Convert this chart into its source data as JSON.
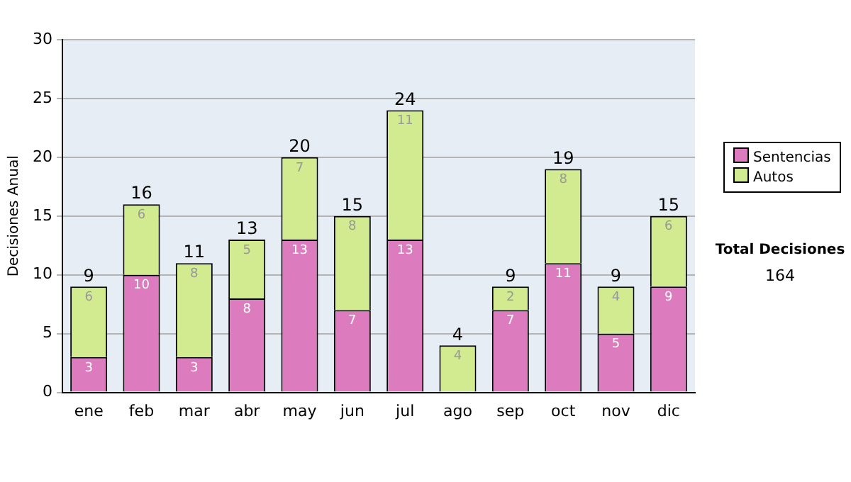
{
  "chart_data": {
    "type": "bar",
    "stacked": true,
    "ylabel": "Decisiones Anual",
    "categories": [
      "ene",
      "feb",
      "mar",
      "abr",
      "may",
      "jun",
      "jul",
      "ago",
      "sep",
      "oct",
      "nov",
      "dic"
    ],
    "series": [
      {
        "name": "Sentencias",
        "color": "#dc7cbe",
        "values": [
          3,
          10,
          3,
          8,
          13,
          7,
          13,
          0,
          7,
          11,
          5,
          9
        ],
        "value_labels": [
          "3",
          "10",
          "3",
          "8",
          "13",
          "7",
          "13",
          null,
          "7",
          "11",
          "5",
          "9"
        ]
      },
      {
        "name": "Autos",
        "color": "#d2ea90",
        "values": [
          6,
          6,
          8,
          5,
          7,
          8,
          11,
          4,
          2,
          8,
          4,
          6
        ],
        "value_labels": [
          "6",
          "6",
          "8",
          "5",
          "7",
          "8",
          "11",
          "4",
          "2",
          "8",
          "4",
          "6"
        ]
      }
    ],
    "totals": [
      "9",
      "16",
      "11",
      "13",
      "20",
      "15",
      "24",
      "4",
      "9",
      "19",
      "9",
      "15"
    ],
    "ylim": [
      0,
      30
    ],
    "yticks": [
      0,
      5,
      10,
      15,
      20,
      25,
      30
    ],
    "grid": "y",
    "legend": "right",
    "annotations": [
      "Total Decisiones",
      "164"
    ]
  }
}
